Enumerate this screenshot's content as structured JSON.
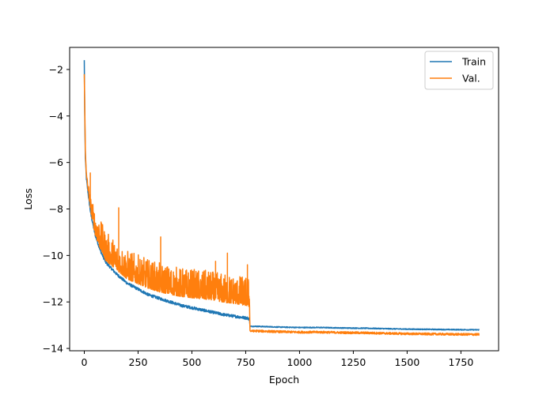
{
  "chart_data": {
    "type": "line",
    "title": "",
    "xlabel": "Epoch",
    "ylabel": "Loss",
    "xlim": [
      -68,
      1925
    ],
    "ylim": [
      -14.1,
      -1.05
    ],
    "xticks": [
      0,
      250,
      500,
      750,
      1000,
      1250,
      1500,
      1750
    ],
    "yticks": [
      -2,
      -4,
      -6,
      -8,
      -10,
      -12,
      -14
    ],
    "grid": false,
    "legend_position": "top-right",
    "series": [
      {
        "name": "Train",
        "color": "#1f77b4",
        "x": [
          0,
          2,
          5,
          10,
          20,
          30,
          50,
          75,
          100,
          150,
          200,
          250,
          300,
          350,
          400,
          450,
          500,
          550,
          600,
          650,
          700,
          760,
          768,
          770,
          800,
          900,
          1000,
          1100,
          1200,
          1300,
          1400,
          1500,
          1600,
          1700,
          1835
        ],
        "y": [
          -1.6,
          -3.8,
          -5.8,
          -6.7,
          -7.5,
          -8.2,
          -9.1,
          -9.8,
          -10.3,
          -10.8,
          -11.2,
          -11.45,
          -11.7,
          -11.85,
          -12.0,
          -12.15,
          -12.25,
          -12.35,
          -12.45,
          -12.55,
          -12.62,
          -12.7,
          -12.75,
          -13.05,
          -13.05,
          -13.08,
          -13.1,
          -13.1,
          -13.12,
          -13.13,
          -13.15,
          -13.17,
          -13.18,
          -13.19,
          -13.2
        ]
      },
      {
        "name": "Val.",
        "color": "#ff7f0e",
        "x": [
          0,
          2,
          5,
          10,
          20,
          30,
          50,
          75,
          100,
          150,
          200,
          250,
          300,
          350,
          400,
          450,
          500,
          550,
          600,
          650,
          700,
          760,
          768,
          770,
          800,
          900,
          1000,
          1100,
          1200,
          1300,
          1400,
          1500,
          1600,
          1700,
          1835
        ],
        "y": [
          -2.2,
          -3.5,
          -5.5,
          -6.6,
          -7.3,
          -8.0,
          -8.9,
          -9.5,
          -10.0,
          -10.4,
          -10.8,
          -11.0,
          -11.2,
          -11.35,
          -11.45,
          -11.55,
          -11.6,
          -11.65,
          -11.7,
          -11.8,
          -11.85,
          -11.95,
          -12.0,
          -13.25,
          -13.25,
          -13.28,
          -13.3,
          -13.3,
          -13.32,
          -13.33,
          -13.35,
          -13.37,
          -13.38,
          -13.39,
          -13.4
        ],
        "noise_amplitude_before_epoch_770": 0.9,
        "spikes": [
          {
            "x": 28,
            "y": -6.45
          },
          {
            "x": 160,
            "y": -7.95
          },
          {
            "x": 355,
            "y": -9.2
          },
          {
            "x": 610,
            "y": -10.25
          },
          {
            "x": 665,
            "y": -9.9
          },
          {
            "x": 758,
            "y": -10.4
          }
        ]
      }
    ]
  }
}
